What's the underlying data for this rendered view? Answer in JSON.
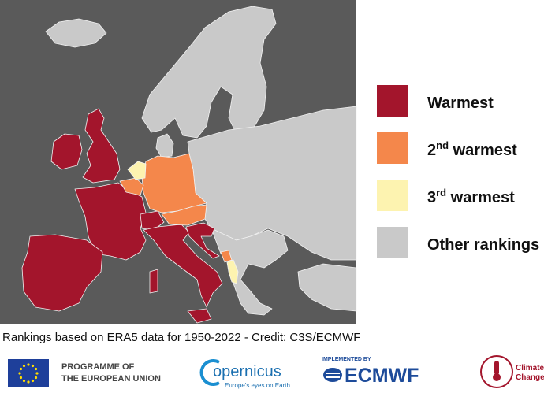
{
  "legend": [
    {
      "text": "Warmest",
      "color": "#a3152c"
    },
    {
      "ordinal": "2",
      "suffix": "nd",
      "text": " warmest",
      "color": "#f4874b"
    },
    {
      "ordinal": "3",
      "suffix": "rd",
      "text": " warmest",
      "color": "#fdf3b0"
    },
    {
      "text": "Other rankings",
      "color": "#c9c9c9"
    }
  ],
  "caption": "Rankings based on ERA5 data for 1950-2022 - Credit: C3S/ECMWF",
  "footer": {
    "eu": [
      "PROGRAMME OF",
      "THE EUROPEAN UNION"
    ],
    "copernicus": {
      "name": "opernicus",
      "tagline": "Europe's eyes on Earth"
    },
    "ecmwf": {
      "label": "IMPLEMENTED BY",
      "name": "ECMWF"
    },
    "climate": [
      "Climate",
      "Change"
    ]
  }
}
